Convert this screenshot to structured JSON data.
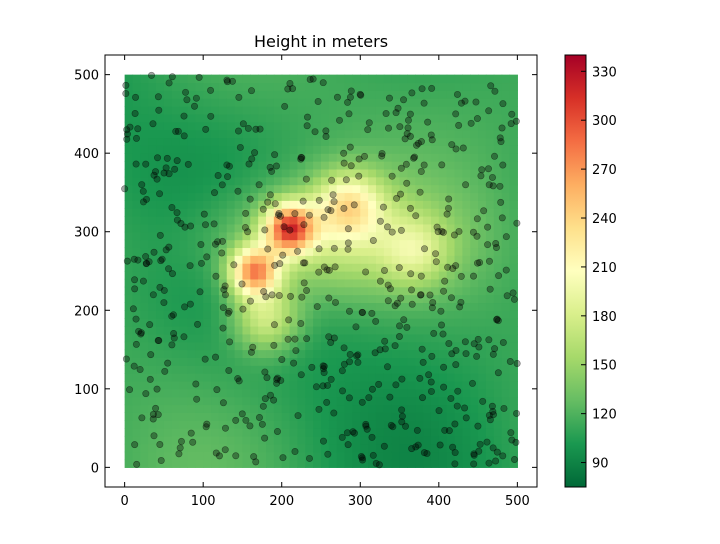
{
  "chart_data": {
    "type": "heatmap",
    "title": "Height in meters",
    "xlabel": "",
    "ylabel": "",
    "xlim": [
      -25,
      525
    ],
    "ylim": [
      -25,
      525
    ],
    "xticks": [
      "0",
      "100",
      "200",
      "300",
      "400",
      "500"
    ],
    "yticks": [
      "0",
      "100",
      "200",
      "300",
      "400",
      "500"
    ],
    "colormap": "RdYlGn_r",
    "colorbar": {
      "vmin": 75,
      "vmax": 340,
      "ticks": [
        "90",
        "120",
        "150",
        "180",
        "210",
        "240",
        "270",
        "300",
        "330"
      ]
    },
    "surface_extent": [
      [
        0,
        500
      ],
      [
        0,
        500
      ]
    ],
    "peaks": [
      {
        "x": 210,
        "y": 305,
        "z": 335
      },
      {
        "x": 165,
        "y": 250,
        "z": 320
      },
      {
        "x": 285,
        "y": 335,
        "z": 255
      },
      {
        "x": 180,
        "y": 190,
        "z": 240
      },
      {
        "x": 370,
        "y": 275,
        "z": 215
      }
    ],
    "colors": {
      "low": "#006837",
      "mid": "#ffffbf",
      "high": "#a50026",
      "points": "#000000"
    }
  }
}
